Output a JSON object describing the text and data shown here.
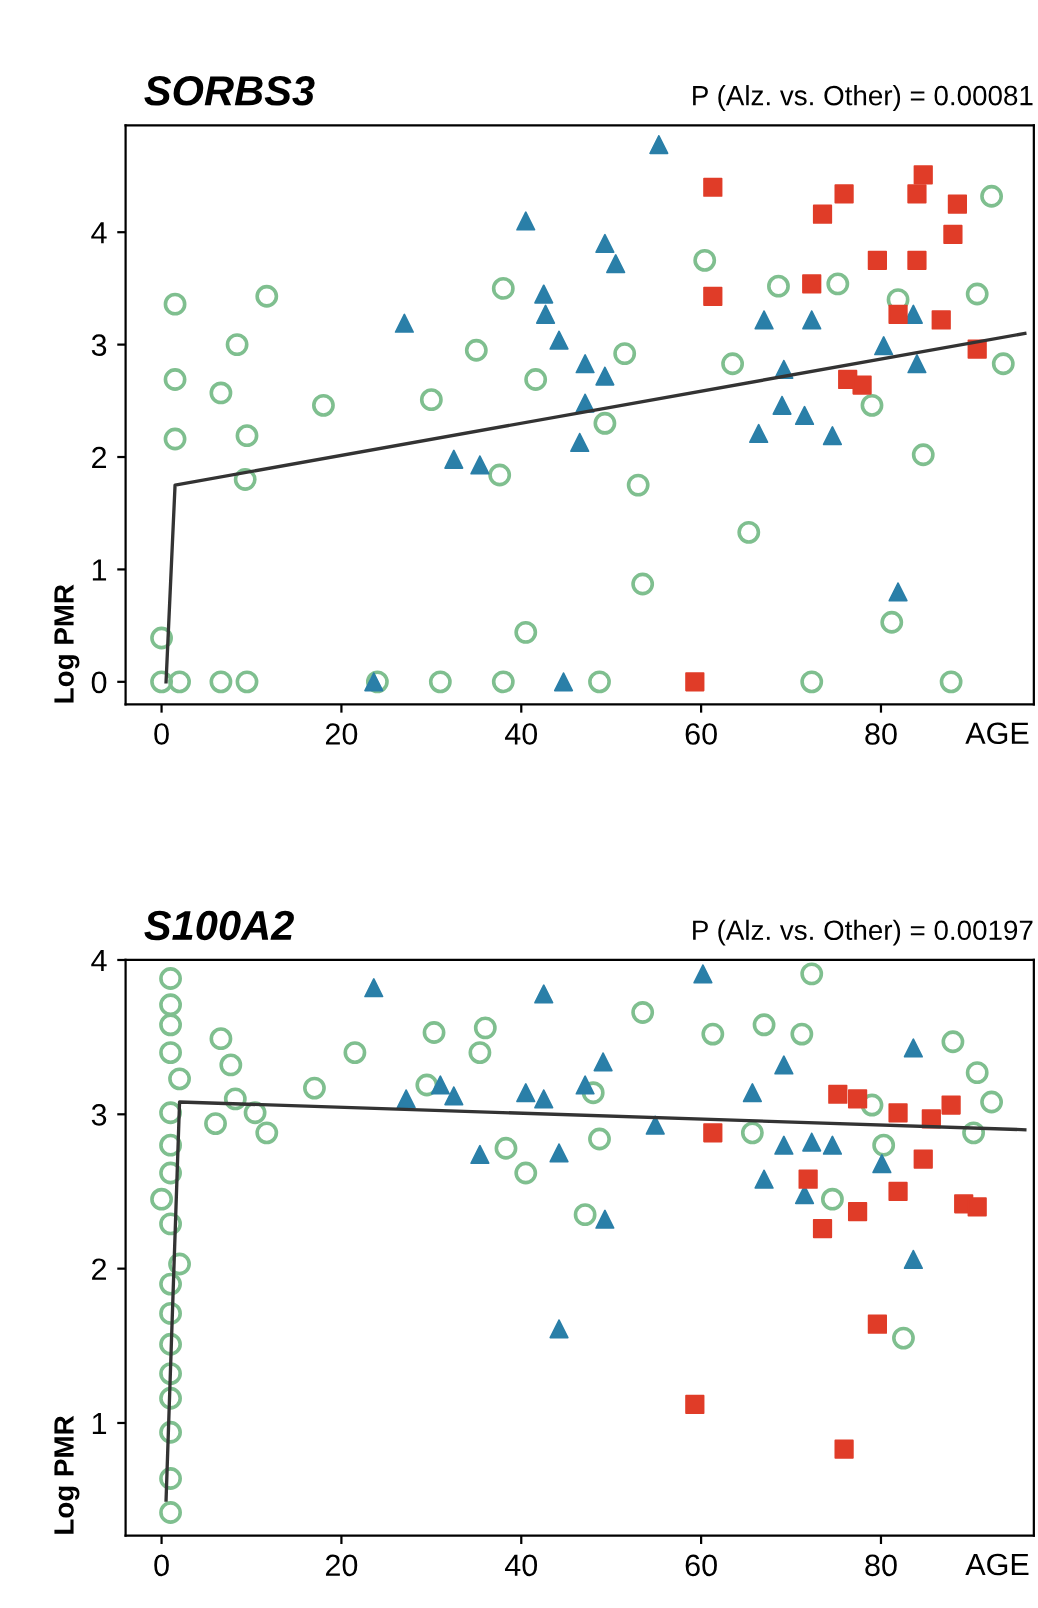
{
  "chart_data": [
    {
      "type": "scatter",
      "title": "SORBS3",
      "subtitle": "P (Alz. vs. Other) = 0.00081",
      "xlabel": "AGE",
      "ylabel": "Log PMR",
      "xlim": [
        -4,
        97
      ],
      "ylim": [
        -0.2,
        4.95
      ],
      "xticks": [
        0,
        20,
        40,
        60,
        80
      ],
      "yticks": [
        0,
        1,
        2,
        3,
        4
      ],
      "grid": false,
      "legend": false,
      "series": [
        {
          "type": "scatter",
          "marker": "circle",
          "color": "#7fbf8f",
          "x": [
            1.5,
            1.5,
            1.5,
            6.6,
            8.4,
            9.5,
            11.7,
            9.3,
            18,
            30,
            35,
            38,
            37.6,
            0,
            0,
            2,
            6.6,
            9.5,
            24,
            31,
            38,
            60.4,
            51.5,
            41.6,
            49.3,
            63.5,
            68.6,
            75.2,
            79,
            81.9,
            90.7,
            92.3,
            93.6,
            84.7,
            53,
            65.3,
            53.5,
            40.5,
            81.2,
            48.7,
            72.3,
            87.8
          ],
          "values": [
            3.36,
            2.69,
            2.16,
            2.57,
            3.0,
            2.19,
            3.43,
            1.8,
            2.46,
            2.51,
            2.95,
            3.5,
            1.84,
            0.39,
            0,
            0,
            0,
            0,
            0,
            0,
            0,
            3.75,
            2.92,
            2.69,
            2.3,
            2.83,
            3.52,
            3.54,
            2.46,
            3.4,
            3.45,
            4.32,
            2.83,
            2.02,
            1.75,
            1.33,
            0.87,
            0.44,
            0.53,
            0,
            0,
            0
          ]
        },
        {
          "type": "scatter",
          "marker": "triangle",
          "color": "#2a7fa8",
          "x": [
            27,
            32.5,
            35.4,
            23.6,
            55.3,
            40.5,
            49.3,
            50.5,
            42.5,
            42.7,
            44.2,
            47.1,
            49.3,
            47.1,
            46.5,
            67,
            72.3,
            69.2,
            66.4,
            69,
            71.5,
            74.6,
            80.3,
            83.6,
            84,
            81.9,
            44.7
          ],
          "values": [
            3.19,
            1.98,
            1.93,
            0,
            4.78,
            4.1,
            3.9,
            3.72,
            3.45,
            3.27,
            3.04,
            2.83,
            2.72,
            2.48,
            2.13,
            3.22,
            3.22,
            2.78,
            2.21,
            2.46,
            2.37,
            2.19,
            2.99,
            3.27,
            2.83,
            0.8,
            0
          ]
        },
        {
          "type": "scatter",
          "marker": "square",
          "color": "#e03c28",
          "x": [
            61.3,
            61.3,
            73.5,
            75.9,
            84.7,
            84,
            88.5,
            88,
            79.6,
            84,
            72.3,
            81.9,
            86.7,
            76.3,
            77.9,
            90.7,
            59.3
          ],
          "values": [
            4.4,
            3.43,
            4.16,
            4.34,
            4.51,
            4.34,
            4.25,
            3.98,
            3.75,
            3.75,
            3.54,
            3.27,
            3.22,
            2.69,
            2.64,
            2.96,
            0
          ]
        },
        {
          "type": "line",
          "color": "#333333",
          "x": [
            0.5,
            1.5,
            96
          ],
          "values": [
            0,
            1.75,
            3.1
          ]
        }
      ]
    },
    {
      "type": "scatter",
      "title": "S100A2",
      "subtitle": "P (Alz. vs. Other) = 0.00197",
      "xlabel": "AGE",
      "ylabel": "Log PMR",
      "xlim": [
        -4,
        97
      ],
      "ylim": [
        0.27,
        4.0
      ],
      "xticks": [
        0,
        20,
        40,
        60,
        80
      ],
      "yticks": [
        1,
        2,
        3,
        4
      ],
      "grid": false,
      "legend": false,
      "series": [
        {
          "type": "scatter",
          "marker": "circle",
          "color": "#7fbf8f",
          "x": [
            1,
            1,
            1,
            1,
            2,
            1,
            1,
            1,
            0,
            1,
            2,
            1,
            1,
            1,
            1,
            1,
            1,
            1,
            1,
            6.6,
            7.7,
            8.2,
            6,
            10.4,
            11.7,
            17,
            21.5,
            30.3,
            36,
            29.5,
            35.4,
            72.3,
            53.5,
            61.3,
            67,
            71.2,
            48,
            48.7,
            38.3,
            40.5,
            47.1,
            65.7,
            79,
            80.3,
            90.7,
            92.3,
            90.3,
            82.5,
            88,
            74.6
          ],
          "values": [
            3.88,
            3.71,
            3.58,
            3.4,
            3.23,
            3.01,
            2.8,
            2.62,
            2.45,
            2.29,
            2.03,
            1.9,
            1.71,
            1.51,
            1.32,
            1.16,
            0.94,
            0.64,
            0.42,
            3.49,
            3.32,
            3.1,
            2.94,
            3.01,
            2.88,
            3.17,
            3.4,
            3.53,
            3.56,
            3.19,
            3.4,
            3.91,
            3.66,
            3.52,
            3.58,
            3.52,
            3.14,
            2.84,
            2.78,
            2.62,
            2.35,
            2.88,
            3.06,
            2.8,
            3.27,
            3.08,
            2.88,
            1.55,
            3.47,
            2.45
          ]
        },
        {
          "type": "scatter",
          "marker": "triangle",
          "color": "#2a7fa8",
          "x": [
            23.6,
            27.2,
            32.5,
            35.4,
            31,
            42.5,
            60.2,
            40.5,
            42.5,
            44.2,
            49.1,
            47.1,
            54.9,
            49.3,
            44.2,
            65.7,
            69.2,
            67,
            69.2,
            72.3,
            74.6,
            71.5,
            80.1,
            83.6,
            83.6
          ],
          "values": [
            3.82,
            3.1,
            3.12,
            2.74,
            3.19,
            3.78,
            3.91,
            3.14,
            3.1,
            2.75,
            3.34,
            3.19,
            2.93,
            2.32,
            1.61,
            3.14,
            3.32,
            2.58,
            2.8,
            2.82,
            2.8,
            2.48,
            2.68,
            3.43,
            2.06
          ]
        },
        {
          "type": "scatter",
          "marker": "square",
          "color": "#e03c28",
          "x": [
            61.3,
            75.2,
            77.4,
            81.9,
            85.6,
            87.8,
            84.7,
            71.9,
            81.9,
            77.4,
            73.5,
            89.2,
            90.7,
            59.3,
            75.9,
            79.6
          ],
          "values": [
            2.88,
            3.13,
            3.1,
            3.01,
            2.97,
            3.06,
            2.71,
            2.58,
            2.5,
            2.37,
            2.26,
            2.42,
            2.4,
            1.12,
            0.83,
            1.64
          ]
        },
        {
          "type": "line",
          "color": "#333333",
          "x": [
            0.5,
            2,
            96
          ],
          "values": [
            0.5,
            3.08,
            2.9
          ]
        }
      ]
    }
  ]
}
